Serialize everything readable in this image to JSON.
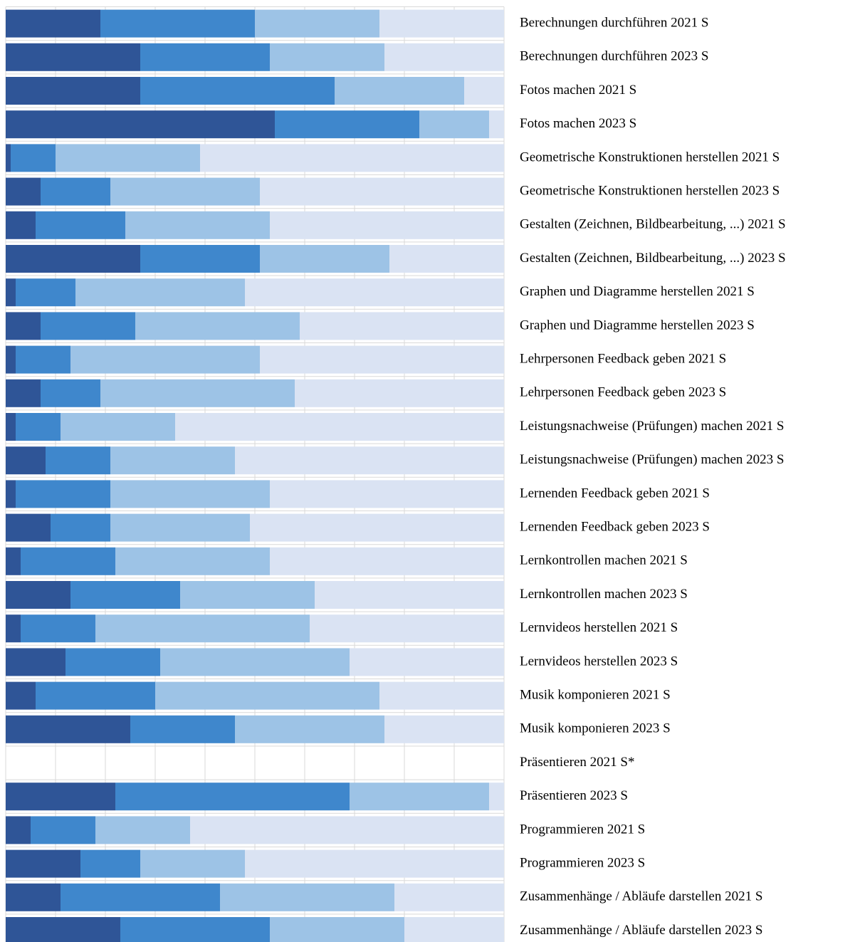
{
  "chart_data": {
    "type": "stacked-barh",
    "categories": [
      "Berechnungen durchführen 2021 S",
      "Berechnungen durchführen 2023 S",
      "Fotos machen 2021 S",
      "Fotos machen 2023 S",
      "Geometrische Konstruktionen herstellen 2021 S",
      "Geometrische Konstruktionen herstellen 2023 S",
      "Gestalten (Zeichnen, Bildbearbeitung, ...) 2021 S",
      "Gestalten (Zeichnen, Bildbearbeitung, ...) 2023 S",
      "Graphen und Diagramme herstellen 2021 S",
      "Graphen und Diagramme herstellen 2023 S",
      "Lehrpersonen Feedback geben 2021 S",
      "Lehrpersonen Feedback geben 2023 S",
      "Leistungsnachweise (Prüfungen) machen 2021 S",
      "Leistungsnachweise (Prüfungen) machen 2023 S",
      "Lernenden Feedback geben 2021 S",
      "Lernenden Feedback geben 2023 S",
      "Lernkontrollen machen 2021 S",
      "Lernkontrollen machen 2023 S",
      "Lernvideos herstellen 2021 S",
      "Lernvideos herstellen 2023 S",
      "Musik komponieren 2021 S",
      "Musik komponieren 2023 S",
      "Präsentieren 2021 S*",
      "Präsentieren 2023 S",
      "Programmieren 2021 S",
      "Programmieren 2023 S",
      "Zusammenhänge / Abläufe darstellen 2021 S",
      "Zusammenhänge / Abläufe darstellen 2023 S"
    ],
    "series": [
      {
        "color": "#2f5597",
        "values": [
          19,
          27,
          27,
          54,
          1,
          7,
          6,
          27,
          2,
          7,
          2,
          7,
          2,
          8,
          2,
          9,
          3,
          13,
          3,
          12,
          6,
          25,
          null,
          22,
          5,
          15,
          11,
          23
        ]
      },
      {
        "color": "#3f87cc",
        "values": [
          31,
          26,
          39,
          29,
          9,
          14,
          18,
          24,
          12,
          19,
          11,
          12,
          9,
          13,
          19,
          12,
          19,
          22,
          15,
          19,
          24,
          21,
          null,
          47,
          13,
          12,
          32,
          30
        ]
      },
      {
        "color": "#9dc3e6",
        "values": [
          25,
          23,
          26,
          14,
          29,
          30,
          29,
          26,
          34,
          33,
          38,
          39,
          23,
          25,
          32,
          28,
          31,
          27,
          43,
          38,
          45,
          30,
          null,
          28,
          19,
          21,
          35,
          27
        ]
      },
      {
        "color": "#dae3f3",
        "values": [
          25,
          24,
          8,
          3,
          61,
          49,
          47,
          23,
          52,
          41,
          49,
          42,
          66,
          54,
          47,
          51,
          47,
          38,
          39,
          31,
          25,
          24,
          null,
          3,
          63,
          52,
          22,
          20
        ]
      }
    ],
    "xlim": [
      0,
      100
    ],
    "xticks": [
      0,
      10,
      20,
      30,
      40,
      50,
      60,
      70,
      80,
      90,
      100
    ],
    "grid": true
  }
}
